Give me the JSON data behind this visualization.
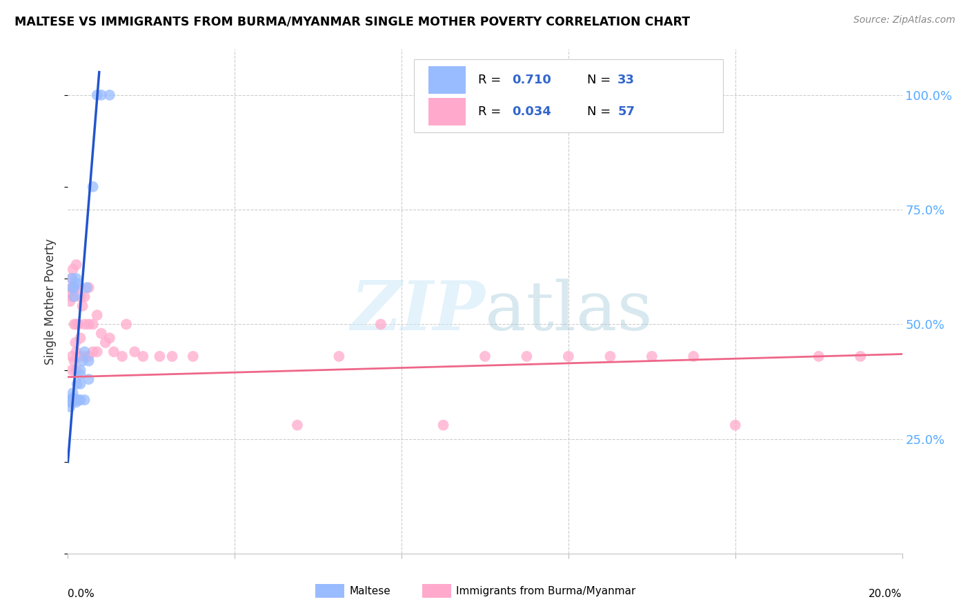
{
  "title": "MALTESE VS IMMIGRANTS FROM BURMA/MYANMAR SINGLE MOTHER POVERTY CORRELATION CHART",
  "source": "Source: ZipAtlas.com",
  "ylabel": "Single Mother Poverty",
  "R_maltese": "0.710",
  "N_maltese": "33",
  "R_burma": "0.034",
  "N_burma": "57",
  "color_maltese": "#99bbff",
  "color_burma": "#ffaacc",
  "color_maltese_line": "#2255cc",
  "color_burma_line": "#ee6688",
  "color_text_blue": "#3366cc",
  "watermark": "ZIPatlas",
  "maltese_x": [
    0.0005,
    0.0005,
    0.0005,
    0.0008,
    0.001,
    0.001,
    0.001,
    0.0012,
    0.0012,
    0.0015,
    0.0015,
    0.0015,
    0.0018,
    0.002,
    0.002,
    0.002,
    0.002,
    0.0022,
    0.0025,
    0.003,
    0.003,
    0.003,
    0.003,
    0.0035,
    0.004,
    0.004,
    0.0045,
    0.005,
    0.005,
    0.006,
    0.007,
    0.008,
    0.01
  ],
  "maltese_y": [
    0.335,
    0.33,
    0.32,
    0.335,
    0.6,
    0.58,
    0.33,
    0.35,
    0.34,
    0.58,
    0.56,
    0.335,
    0.335,
    0.6,
    0.59,
    0.335,
    0.33,
    0.37,
    0.335,
    0.4,
    0.39,
    0.37,
    0.335,
    0.42,
    0.44,
    0.335,
    0.58,
    0.42,
    0.38,
    0.8,
    1.0,
    1.0,
    1.0
  ],
  "burma_x": [
    0.0005,
    0.0005,
    0.0008,
    0.001,
    0.001,
    0.001,
    0.001,
    0.001,
    0.0012,
    0.0015,
    0.0015,
    0.0015,
    0.0018,
    0.002,
    0.002,
    0.002,
    0.002,
    0.002,
    0.0025,
    0.003,
    0.003,
    0.003,
    0.0035,
    0.004,
    0.004,
    0.004,
    0.005,
    0.005,
    0.005,
    0.006,
    0.006,
    0.007,
    0.007,
    0.008,
    0.009,
    0.01,
    0.011,
    0.013,
    0.014,
    0.016,
    0.018,
    0.022,
    0.025,
    0.03,
    0.055,
    0.065,
    0.075,
    0.09,
    0.1,
    0.11,
    0.12,
    0.13,
    0.14,
    0.15,
    0.16,
    0.18,
    0.19
  ],
  "burma_y": [
    0.57,
    0.55,
    0.6,
    0.58,
    0.56,
    0.43,
    0.4,
    0.335,
    0.62,
    0.58,
    0.5,
    0.42,
    0.46,
    0.63,
    0.58,
    0.5,
    0.44,
    0.4,
    0.5,
    0.56,
    0.47,
    0.43,
    0.54,
    0.56,
    0.5,
    0.43,
    0.58,
    0.5,
    0.43,
    0.5,
    0.44,
    0.52,
    0.44,
    0.48,
    0.46,
    0.47,
    0.44,
    0.43,
    0.5,
    0.44,
    0.43,
    0.43,
    0.43,
    0.43,
    0.28,
    0.43,
    0.5,
    0.28,
    0.43,
    0.43,
    0.43,
    0.43,
    0.43,
    0.43,
    0.28,
    0.43,
    0.43
  ],
  "xmin": 0.0,
  "xmax": 0.2,
  "ymin": 0.0,
  "ymax": 1.1,
  "yticks": [
    0.25,
    0.5,
    0.75,
    1.0
  ],
  "ytick_labels": [
    "25.0%",
    "50.0%",
    "75.0%",
    "100.0%"
  ],
  "xtick_positions": [
    0.0,
    0.04,
    0.08,
    0.12,
    0.16,
    0.2
  ]
}
